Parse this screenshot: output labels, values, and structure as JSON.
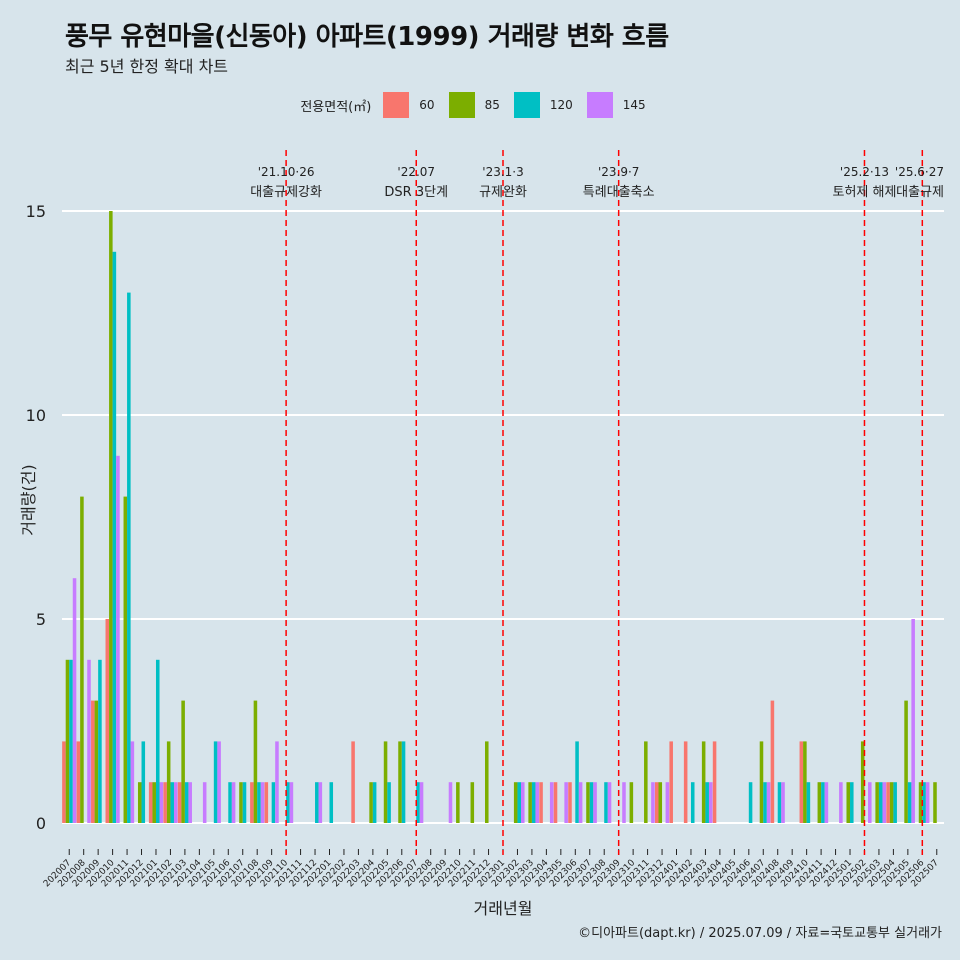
{
  "title": "풍무 유현마을(신동아) 아파트(1999) 거래량 변화 흐름",
  "subtitle": "최근 5년 한정 확대 차트",
  "caption": "©디아파트(dapt.kr) / 2025.07.09 / 자료=국토교통부 실거래가",
  "legend": {
    "title": "전용면적(㎡)",
    "items": [
      {
        "label": "60",
        "color": "#f8766d"
      },
      {
        "label": "85",
        "color": "#7cae00"
      },
      {
        "label": "120",
        "color": "#00bfc4"
      },
      {
        "label": "145",
        "color": "#c77cff"
      }
    ]
  },
  "chart_data": {
    "type": "bar",
    "xlabel": "거래년월",
    "ylabel": "거래량(건)",
    "ylim": [
      0,
      15
    ],
    "yticks": [
      0,
      5,
      10,
      15
    ],
    "grid": true,
    "legend_position": "top",
    "categories": [
      "202007",
      "202008",
      "202009",
      "202010",
      "202011",
      "202012",
      "202101",
      "202102",
      "202103",
      "202104",
      "202105",
      "202106",
      "202107",
      "202108",
      "202109",
      "202110",
      "202111",
      "202112",
      "202201",
      "202202",
      "202203",
      "202204",
      "202205",
      "202206",
      "202207",
      "202208",
      "202209",
      "202210",
      "202211",
      "202212",
      "202301",
      "202302",
      "202303",
      "202304",
      "202305",
      "202306",
      "202307",
      "202308",
      "202309",
      "202310",
      "202311",
      "202312",
      "202401",
      "202402",
      "202403",
      "202404",
      "202405",
      "202406",
      "202407",
      "202408",
      "202409",
      "202410",
      "202411",
      "202412",
      "202501",
      "202502",
      "202503",
      "202504",
      "202505",
      "202506",
      "202507"
    ],
    "series": [
      {
        "name": "60",
        "color": "#f8766d",
        "values": [
          2,
          2,
          3,
          5,
          0,
          0,
          1,
          1,
          1,
          0,
          0,
          0,
          0,
          1,
          1,
          0,
          0,
          0,
          0,
          0,
          2,
          0,
          0,
          0,
          0,
          0,
          0,
          0,
          0,
          0,
          0,
          0,
          0,
          1,
          1,
          1,
          0,
          0,
          0,
          0,
          0,
          1,
          2,
          2,
          0,
          2,
          0,
          0,
          0,
          3,
          0,
          2,
          0,
          0,
          0,
          0,
          0,
          1,
          0,
          0,
          0
        ]
      },
      {
        "name": "85",
        "color": "#7cae00",
        "values": [
          4,
          8,
          3,
          15,
          8,
          1,
          1,
          2,
          3,
          0,
          0,
          0,
          1,
          3,
          0,
          0,
          0,
          0,
          0,
          0,
          0,
          1,
          2,
          2,
          0,
          0,
          0,
          1,
          1,
          2,
          0,
          1,
          1,
          0,
          0,
          0,
          1,
          0,
          0,
          1,
          2,
          1,
          0,
          0,
          2,
          0,
          0,
          0,
          2,
          0,
          0,
          2,
          1,
          0,
          1,
          2,
          1,
          1,
          3,
          1,
          1
        ]
      },
      {
        "name": "120",
        "color": "#00bfc4",
        "values": [
          4,
          0,
          4,
          14,
          13,
          2,
          4,
          1,
          1,
          0,
          2,
          1,
          1,
          1,
          1,
          1,
          0,
          1,
          1,
          0,
          0,
          1,
          1,
          2,
          1,
          0,
          0,
          0,
          0,
          0,
          0,
          1,
          1,
          0,
          0,
          2,
          1,
          1,
          0,
          0,
          0,
          0,
          0,
          1,
          1,
          0,
          0,
          1,
          1,
          1,
          0,
          1,
          1,
          0,
          1,
          0,
          1,
          1,
          1,
          1,
          0
        ]
      },
      {
        "name": "145",
        "color": "#c77cff",
        "values": [
          6,
          4,
          0,
          9,
          2,
          0,
          1,
          1,
          1,
          1,
          2,
          1,
          0,
          1,
          2,
          1,
          0,
          1,
          0,
          0,
          0,
          0,
          0,
          0,
          1,
          0,
          1,
          0,
          0,
          0,
          0,
          1,
          1,
          1,
          1,
          1,
          1,
          1,
          1,
          0,
          1,
          1,
          0,
          0,
          1,
          0,
          0,
          0,
          1,
          1,
          0,
          0,
          1,
          1,
          0,
          1,
          1,
          0,
          5,
          1,
          0
        ]
      }
    ],
    "events": [
      {
        "date": "'21.10·26",
        "label": "대출규제강화",
        "x": "202110"
      },
      {
        "date": "'22.07",
        "label": "DSR 3단계",
        "x": "202207"
      },
      {
        "date": "'23.1·3",
        "label": "규제완화",
        "x": "202301"
      },
      {
        "date": "'23.9·7",
        "label": "특례대출축소",
        "x": "202309"
      },
      {
        "date": "'25.2·13",
        "label": "토허제 해제",
        "x": "202502"
      },
      {
        "date": "'25.6·27",
        "label": "대출규제",
        "x": "202506"
      }
    ]
  }
}
